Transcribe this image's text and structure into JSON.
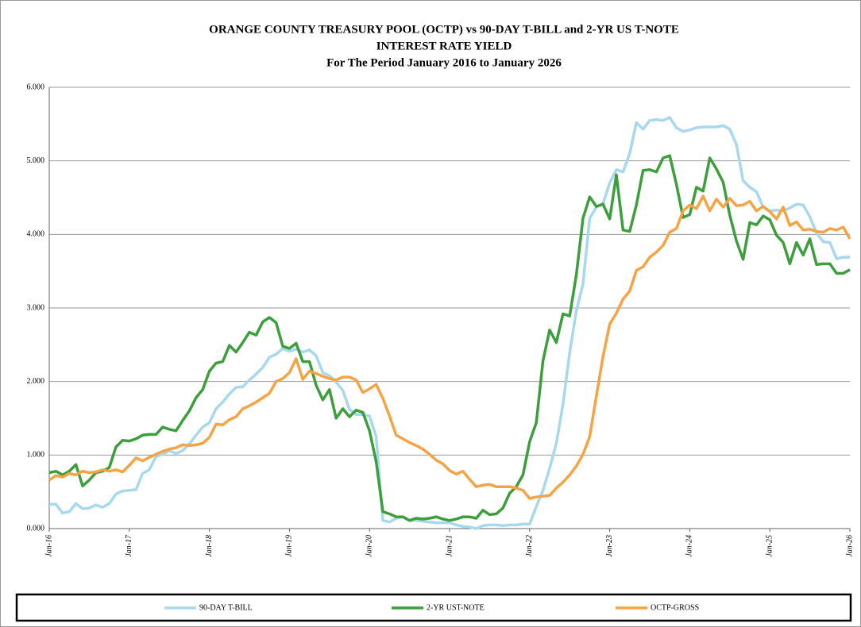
{
  "chart_data": {
    "type": "line",
    "title_lines": [
      "ORANGE COUNTY TREASURY POOL (OCTP) vs 90-DAY T-BILL and 2-YR US T-NOTE",
      "INTEREST RATE YIELD",
      "For The Period January 2016 to January 2026"
    ],
    "categories": [
      "Jan-16",
      null,
      null,
      null,
      null,
      null,
      null,
      null,
      null,
      null,
      null,
      null,
      "Jan-17",
      null,
      null,
      null,
      null,
      null,
      null,
      null,
      null,
      null,
      null,
      null,
      "Jan-18",
      null,
      null,
      null,
      null,
      null,
      null,
      null,
      null,
      null,
      null,
      null,
      "Jan-19",
      null,
      null,
      null,
      null,
      null,
      null,
      null,
      null,
      null,
      null,
      null,
      "Jan-20",
      null,
      null,
      null,
      null,
      null,
      null,
      null,
      null,
      null,
      null,
      null,
      "Jan-21",
      null,
      null,
      null,
      null,
      null,
      null,
      null,
      null,
      null,
      null,
      null,
      "Jan-22",
      null,
      null,
      null,
      null,
      null,
      null,
      null,
      null,
      null,
      null,
      null,
      "Jan-23",
      null,
      null,
      null,
      null,
      null,
      null,
      null,
      null,
      null,
      null,
      null,
      "Jan-24",
      null,
      null,
      null,
      null,
      null,
      null,
      null,
      null,
      null,
      null,
      null,
      "Jan-25",
      null,
      null,
      null,
      null,
      null,
      null,
      null,
      null,
      null,
      null,
      null,
      "Jan-26"
    ],
    "series": [
      {
        "name": "90-DAY T-BILL",
        "color": "#a8d8ee",
        "values": [
          0.33,
          0.33,
          0.21,
          0.23,
          0.34,
          0.27,
          0.28,
          0.32,
          0.29,
          0.34,
          0.47,
          0.51,
          0.52,
          0.53,
          0.75,
          0.8,
          0.98,
          1.01,
          1.06,
          1.02,
          1.06,
          1.15,
          1.27,
          1.38,
          1.44,
          1.63,
          1.72,
          1.83,
          1.92,
          1.93,
          2.02,
          2.1,
          2.19,
          2.33,
          2.37,
          2.45,
          2.41,
          2.44,
          2.4,
          2.43,
          2.35,
          2.12,
          2.08,
          1.99,
          1.88,
          1.62,
          1.55,
          1.55,
          1.53,
          1.25,
          0.11,
          0.09,
          0.14,
          0.16,
          0.11,
          0.11,
          0.1,
          0.09,
          0.08,
          0.08,
          0.08,
          0.05,
          0.03,
          0.02,
          0.0,
          0.04,
          0.05,
          0.05,
          0.04,
          0.05,
          0.05,
          0.06,
          0.06,
          0.3,
          0.52,
          0.82,
          1.16,
          1.69,
          2.39,
          2.96,
          3.33,
          4.22,
          4.37,
          4.42,
          4.7,
          4.88,
          4.85,
          5.1,
          5.52,
          5.43,
          5.55,
          5.56,
          5.55,
          5.59,
          5.45,
          5.4,
          5.42,
          5.45,
          5.46,
          5.46,
          5.46,
          5.48,
          5.43,
          5.22,
          4.73,
          4.64,
          4.58,
          4.37,
          4.32,
          4.33,
          4.32,
          4.36,
          4.41,
          4.4,
          4.24,
          4.02,
          3.9,
          3.89,
          3.67,
          3.69,
          3.69
        ]
      },
      {
        "name": "2-YR UST-NOTE",
        "color": "#3d9e3d",
        "values": [
          0.76,
          0.78,
          0.73,
          0.78,
          0.87,
          0.58,
          0.66,
          0.76,
          0.78,
          0.83,
          1.11,
          1.2,
          1.19,
          1.22,
          1.27,
          1.28,
          1.28,
          1.38,
          1.35,
          1.33,
          1.47,
          1.6,
          1.78,
          1.89,
          2.14,
          2.25,
          2.27,
          2.49,
          2.4,
          2.53,
          2.67,
          2.63,
          2.81,
          2.87,
          2.8,
          2.48,
          2.45,
          2.52,
          2.27,
          2.27,
          1.95,
          1.75,
          1.89,
          1.5,
          1.63,
          1.52,
          1.61,
          1.58,
          1.33,
          0.91,
          0.23,
          0.2,
          0.16,
          0.16,
          0.11,
          0.14,
          0.13,
          0.14,
          0.16,
          0.13,
          0.11,
          0.13,
          0.16,
          0.16,
          0.14,
          0.25,
          0.19,
          0.2,
          0.28,
          0.48,
          0.57,
          0.73,
          1.18,
          1.44,
          2.28,
          2.7,
          2.53,
          2.92,
          2.89,
          3.45,
          4.22,
          4.51,
          4.38,
          4.41,
          4.21,
          4.81,
          4.06,
          4.04,
          4.4,
          4.87,
          4.88,
          4.85,
          5.04,
          5.07,
          4.68,
          4.23,
          4.27,
          4.64,
          4.59,
          5.04,
          4.89,
          4.71,
          4.26,
          3.91,
          3.66,
          4.16,
          4.13,
          4.25,
          4.2,
          3.99,
          3.89,
          3.6,
          3.89,
          3.72,
          3.94,
          3.59,
          3.6,
          3.6,
          3.47,
          3.47,
          3.52
        ]
      },
      {
        "name": "OCTP-GROSS",
        "color": "#f5a445",
        "values": [
          0.66,
          0.72,
          0.7,
          0.75,
          0.73,
          0.78,
          0.76,
          0.77,
          0.8,
          0.78,
          0.8,
          0.77,
          0.86,
          0.96,
          0.92,
          0.97,
          1.01,
          1.05,
          1.08,
          1.1,
          1.14,
          1.13,
          1.14,
          1.16,
          1.24,
          1.42,
          1.41,
          1.48,
          1.52,
          1.63,
          1.67,
          1.72,
          1.78,
          1.84,
          2.0,
          2.04,
          2.12,
          2.31,
          2.03,
          2.14,
          2.11,
          2.07,
          2.04,
          2.02,
          2.06,
          2.06,
          2.02,
          1.85,
          1.9,
          1.96,
          1.77,
          1.53,
          1.27,
          1.22,
          1.17,
          1.13,
          1.08,
          1.01,
          0.93,
          0.88,
          0.79,
          0.74,
          0.78,
          0.67,
          0.57,
          0.59,
          0.6,
          0.57,
          0.57,
          0.57,
          0.55,
          0.52,
          0.41,
          0.43,
          0.44,
          0.45,
          0.55,
          0.63,
          0.73,
          0.85,
          1.01,
          1.25,
          1.8,
          2.34,
          2.78,
          2.93,
          3.12,
          3.23,
          3.51,
          3.56,
          3.69,
          3.76,
          3.85,
          4.03,
          4.08,
          4.32,
          4.4,
          4.35,
          4.52,
          4.32,
          4.48,
          4.37,
          4.49,
          4.39,
          4.4,
          4.45,
          4.32,
          4.38,
          4.31,
          4.21,
          4.37,
          4.12,
          4.17,
          4.06,
          4.07,
          4.04,
          4.03,
          4.08,
          4.06,
          4.1,
          3.94
        ]
      }
    ],
    "ylim": [
      0,
      6
    ],
    "yticks": [
      {
        "value": 0,
        "label": "0.000"
      },
      {
        "value": 1,
        "label": "1.000"
      },
      {
        "value": 2,
        "label": "2.000"
      },
      {
        "value": 3,
        "label": "3.000"
      },
      {
        "value": 4,
        "label": "4.000"
      },
      {
        "value": 5,
        "label": "5.000"
      },
      {
        "value": 6,
        "label": "6.000"
      }
    ],
    "grid": true,
    "legend": "bottom"
  }
}
